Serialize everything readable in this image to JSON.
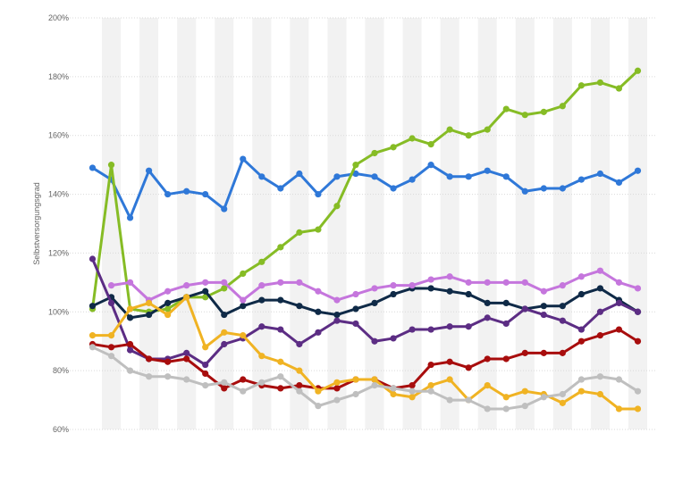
{
  "chart_data": {
    "type": "line",
    "title": "",
    "xlabel": "",
    "ylabel": "Selbstversorgungsgrad",
    "ylim": [
      60,
      200
    ],
    "yticks": [
      "60%",
      "80%",
      "100%",
      "120%",
      "140%",
      "160%",
      "180%",
      "200%"
    ],
    "ytick_values": [
      60,
      80,
      100,
      120,
      140,
      160,
      180,
      200
    ],
    "grid": true,
    "legend": "none",
    "x": [
      1,
      2,
      3,
      4,
      5,
      6,
      7,
      8,
      9,
      10,
      11,
      12,
      13,
      14,
      15,
      16,
      17,
      18,
      19,
      20,
      21,
      22,
      23,
      24,
      25,
      26,
      27,
      28,
      29,
      30
    ],
    "series": [
      {
        "color": "#2f78d8",
        "values": [
          149,
          145,
          132,
          148,
          140,
          141,
          140,
          135,
          152,
          146,
          142,
          147,
          140,
          146,
          147,
          146,
          142,
          145,
          150,
          146,
          146,
          148,
          146,
          141,
          142,
          142,
          145,
          147,
          144,
          148
        ]
      },
      {
        "color": "#86bc25",
        "values": [
          101,
          150,
          101,
          100,
          101,
          105,
          105,
          108,
          113,
          117,
          122,
          127,
          128,
          136,
          150,
          154,
          156,
          159,
          157,
          162,
          160,
          162,
          169,
          167,
          168,
          170,
          177,
          178,
          176,
          182
        ]
      },
      {
        "color": "#0f2a47",
        "values": [
          102,
          105,
          98,
          99,
          103,
          105,
          107,
          99,
          102,
          104,
          104,
          102,
          100,
          99,
          101,
          103,
          106,
          108,
          108,
          107,
          106,
          103,
          103,
          101,
          102,
          102,
          106,
          108,
          104,
          100
        ]
      },
      {
        "color": "#c576dd",
        "values": [
          null,
          109,
          110,
          104,
          107,
          109,
          110,
          110,
          104,
          109,
          110,
          110,
          107,
          104,
          106,
          108,
          109,
          109,
          111,
          112,
          110,
          110,
          110,
          110,
          107,
          109,
          112,
          114,
          110,
          108
        ]
      },
      {
        "color": "#5c2d84",
        "values": [
          118,
          103,
          87,
          84,
          84,
          86,
          82,
          89,
          91,
          95,
          94,
          89,
          93,
          97,
          96,
          90,
          91,
          94,
          94,
          95,
          95,
          98,
          96,
          101,
          99,
          97,
          94,
          100,
          103,
          100
        ]
      },
      {
        "color": "#a80d0d",
        "values": [
          89,
          88,
          89,
          84,
          83,
          84,
          79,
          74,
          77,
          75,
          74,
          75,
          74,
          74,
          77,
          77,
          74,
          75,
          82,
          83,
          81,
          84,
          84,
          86,
          86,
          86,
          90,
          92,
          94,
          90
        ]
      },
      {
        "color": "#f0b323",
        "values": [
          92,
          92,
          101,
          103,
          99,
          105,
          88,
          93,
          92,
          85,
          83,
          80,
          73,
          76,
          77,
          77,
          72,
          71,
          75,
          77,
          70,
          75,
          71,
          73,
          72,
          69,
          73,
          72,
          67,
          67
        ]
      },
      {
        "color": "#bfbfbf",
        "values": [
          88,
          85,
          80,
          78,
          78,
          77,
          75,
          76,
          73,
          76,
          78,
          73,
          68,
          70,
          72,
          75,
          74,
          73,
          73,
          70,
          70,
          67,
          67,
          68,
          71,
          72,
          77,
          78,
          77,
          73
        ]
      }
    ]
  }
}
